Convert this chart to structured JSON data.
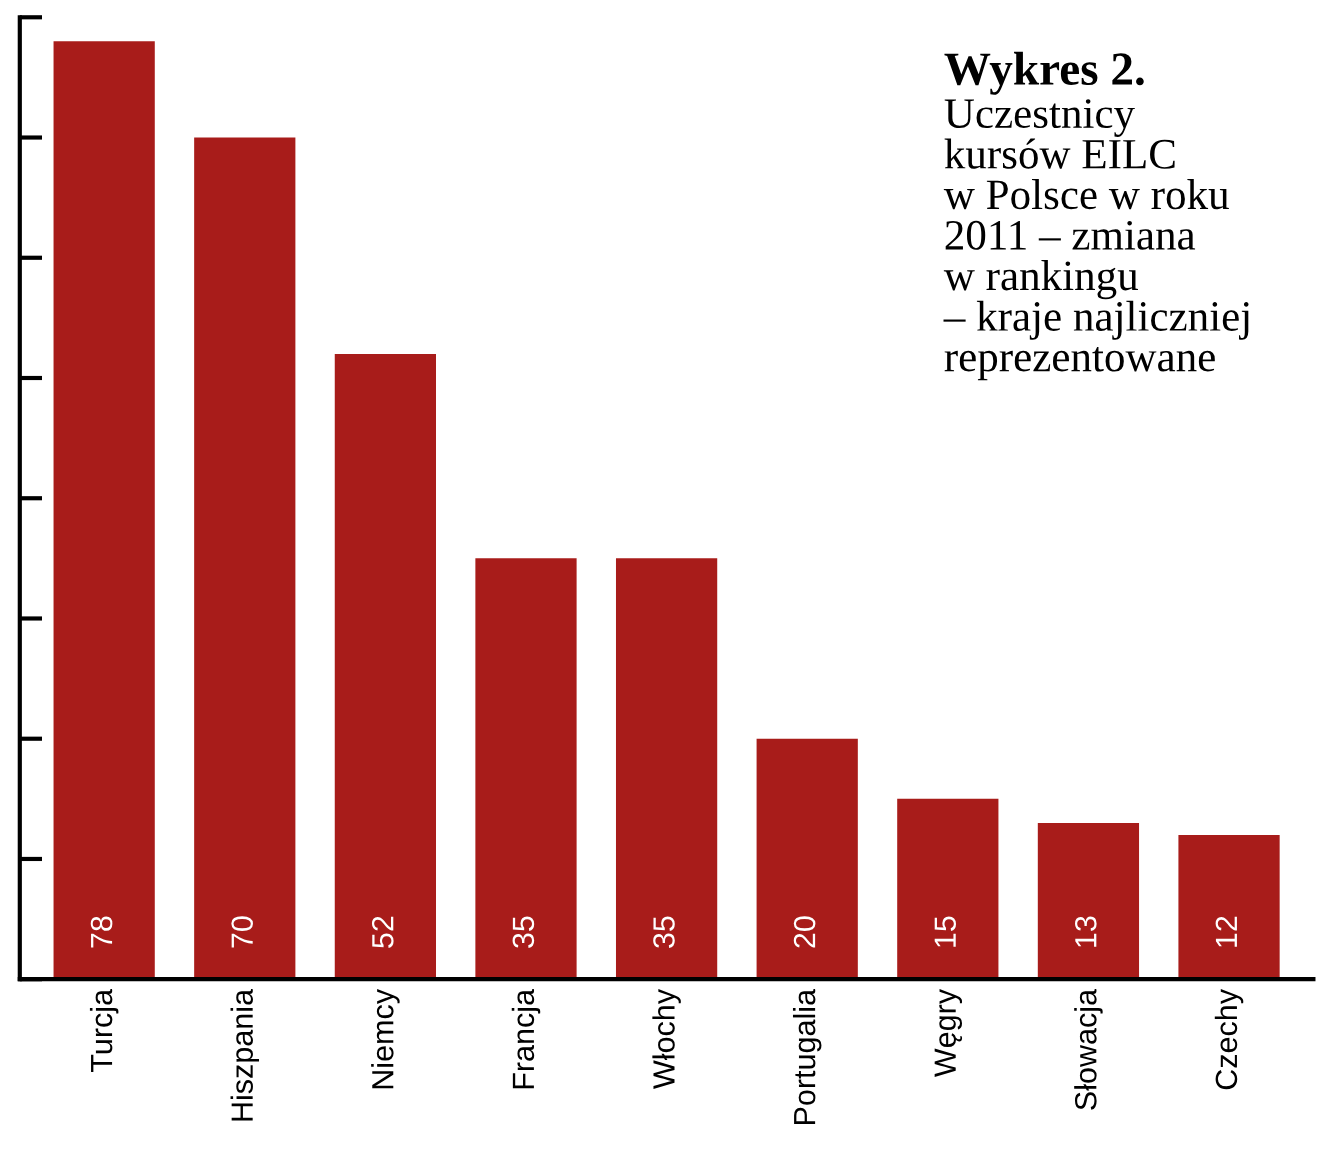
{
  "chart_data": {
    "type": "bar",
    "title": "Wykres 2.",
    "subtitle": "Uczestnicy\nkursów EILC\nw Polsce w roku\n2011 – zmiana\nw rankingu\n– kraje najliczniej\nreprezentowane",
    "categories": [
      "Turcja",
      "Hiszpania",
      "Niemcy",
      "Francja",
      "Włochy",
      "Portugalia",
      "Węgry",
      "Słowacja",
      "Czechy"
    ],
    "values": [
      78,
      70,
      52,
      35,
      35,
      20,
      15,
      13,
      12
    ],
    "color": "#a81c1a",
    "ylim": [
      0,
      80
    ],
    "yticks": [
      {
        "value": 0,
        "label": null
      },
      {
        "value": 10,
        "label": null
      },
      {
        "value": 20,
        "label": null
      },
      {
        "value": 30,
        "label": null
      },
      {
        "value": 40,
        "label": null
      },
      {
        "value": 50,
        "label": null
      },
      {
        "value": 60,
        "label": null
      },
      {
        "value": 70,
        "label": null
      },
      {
        "value": 80,
        "label": null
      }
    ],
    "tick_labels": "x",
    "data_labels": true,
    "grid": false
  }
}
